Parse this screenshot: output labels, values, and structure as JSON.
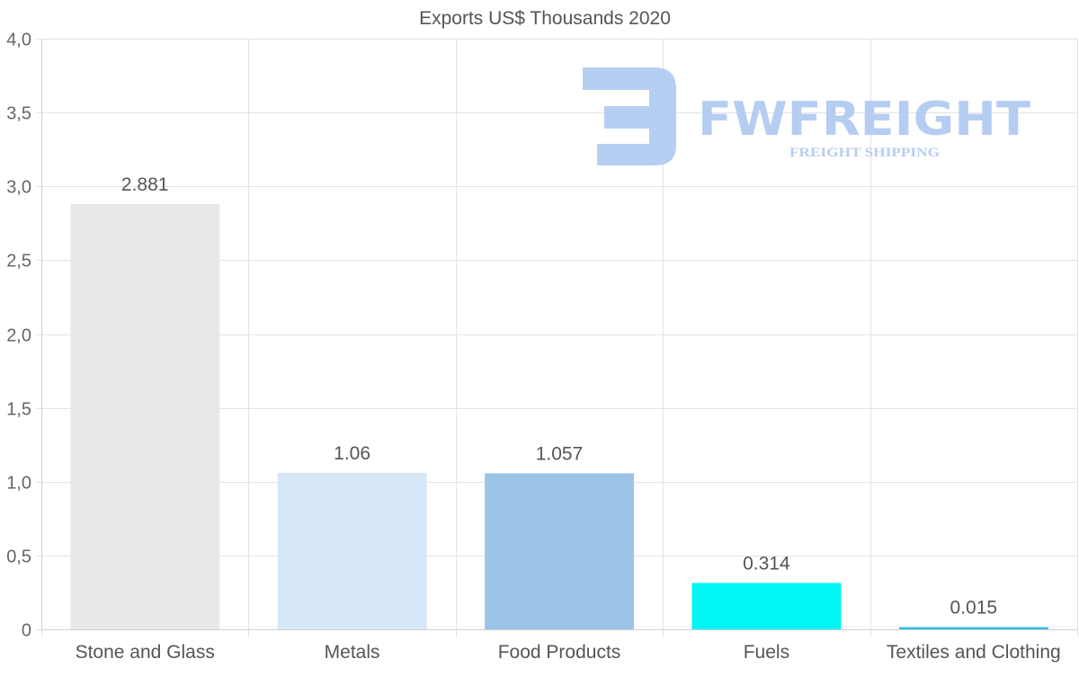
{
  "chart_data": {
    "type": "bar",
    "title": "Exports US$ Thousands 2020",
    "xlabel": "",
    "ylabel": "",
    "ylim": [
      0,
      4
    ],
    "ytick_values": [
      0,
      0.5,
      1,
      1.5,
      2,
      2.5,
      3,
      3.5,
      4
    ],
    "ytick_labels": [
      "0",
      "0,5",
      "1,0",
      "1,5",
      "2,0",
      "2,5",
      "3,0",
      "3,5",
      "4,0"
    ],
    "categories": [
      "Stone and Glass",
      "Metals",
      "Food Products",
      "Fuels",
      "Textiles and Clothing"
    ],
    "values": [
      2.881,
      1.06,
      1.057,
      0.314,
      0.015
    ],
    "value_labels": [
      "2.881",
      "1.06",
      "1.057",
      "0.314",
      "0.015"
    ],
    "colors": [
      "#e8e8e8",
      "#d6e7f8",
      "#9cc4e8",
      "#00f5f5",
      "#33bde6"
    ],
    "grid": true,
    "legend": "none"
  },
  "watermark": {
    "brand": "FWFREIGHT",
    "tagline": "FREIGHT SHIPPING",
    "color": "#b3cbf2",
    "icon": "fwfreight-logo-icon"
  }
}
